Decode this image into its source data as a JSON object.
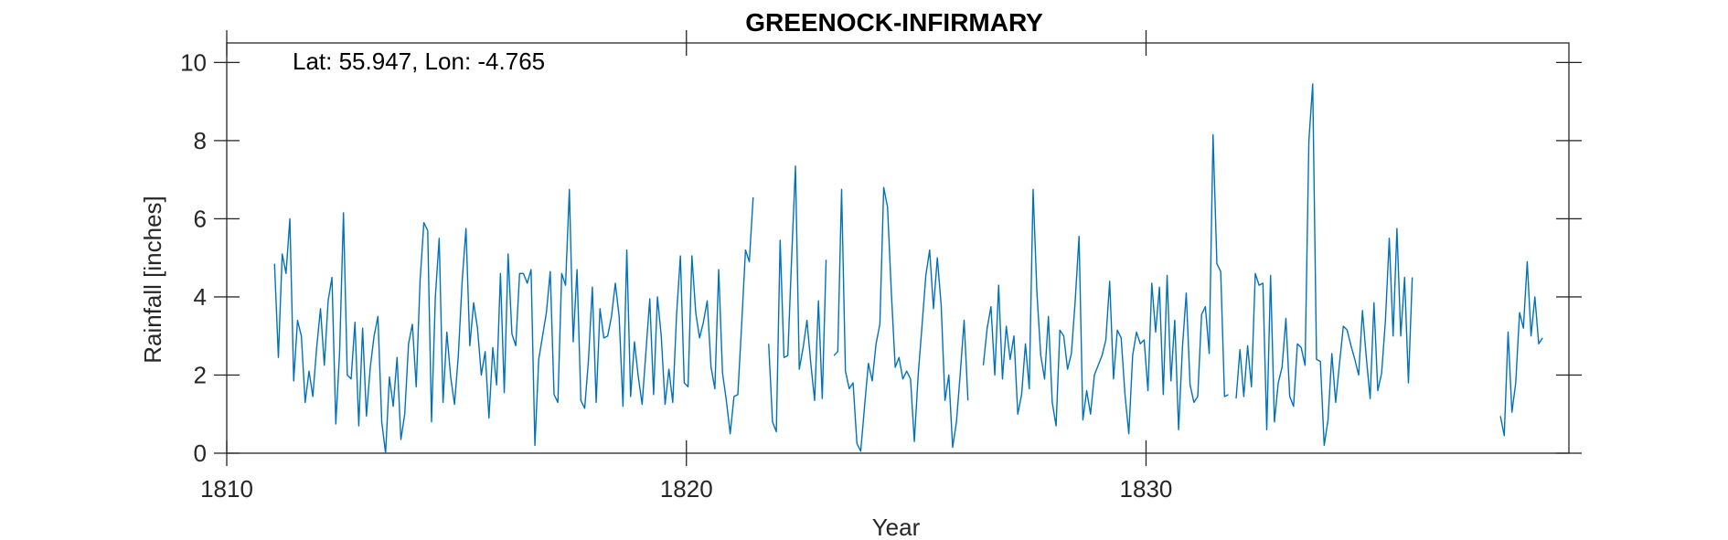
{
  "chart_data": {
    "type": "line",
    "title": "GREENOCK-INFIRMARY",
    "annotation": "Lat: 55.947, Lon: -4.765",
    "xlabel": "Year",
    "ylabel": "Rainfall [inches]",
    "xlim": [
      1810,
      1839.2
    ],
    "ylim": [
      0,
      10.5
    ],
    "xticks": [
      1810,
      1820,
      1830
    ],
    "yticks": [
      0,
      2,
      4,
      6,
      8,
      10
    ],
    "grid": false,
    "line_color": "#0072BD",
    "series": [
      {
        "segments": [
          {
            "start": 1811.04,
            "step": 0.0833,
            "values": [
              4.85,
              2.45,
              5.1,
              4.6,
              6.0,
              1.85,
              3.4,
              3.0,
              1.3,
              2.1,
              1.45,
              2.7,
              3.7,
              2.25,
              3.9,
              4.5,
              0.75,
              2.6,
              6.15,
              2.0,
              1.9,
              3.35,
              0.7,
              3.2,
              0.95,
              2.2,
              3.0,
              3.5,
              0.8,
              0.0,
              1.95,
              1.2,
              2.45,
              0.35,
              1.0,
              2.8,
              3.3,
              1.7,
              4.4,
              5.9,
              5.7,
              0.8,
              4.0,
              5.5,
              1.3,
              3.1,
              1.95,
              1.25,
              2.5,
              4.4,
              5.75,
              2.75,
              3.85,
              3.2,
              2.0,
              2.6,
              0.9,
              2.7,
              1.75,
              4.6,
              1.55,
              5.1,
              3.05,
              2.75,
              4.6,
              4.6,
              4.35,
              4.7,
              0.2,
              2.4,
              3.0,
              3.6,
              4.65,
              1.5,
              1.3,
              4.6,
              4.3,
              6.75,
              2.85,
              4.7,
              1.35,
              1.15,
              2.4,
              4.25,
              1.3,
              3.7,
              2.95,
              3.0,
              3.5,
              4.35,
              3.5,
              1.2,
              5.2,
              1.45,
              2.85,
              1.95,
              1.25,
              2.6,
              3.95,
              1.5,
              4.0,
              3.0,
              1.25,
              2.15,
              1.3,
              3.55,
              5.05,
              1.8,
              1.7,
              5.05,
              3.6,
              2.95,
              3.35,
              3.9,
              2.2,
              1.65,
              4.7,
              2.05,
              1.35,
              0.5,
              1.45,
              1.5,
              3.3,
              5.2,
              4.9,
              6.55
            ]
          },
          {
            "start": 1821.79,
            "step": 0.0833,
            "values": [
              2.8,
              0.8,
              0.55,
              5.45,
              2.45,
              2.5,
              5.0,
              7.35,
              2.15,
              2.7,
              3.4,
              2.3,
              1.35,
              3.9,
              1.4,
              4.95
            ]
          },
          {
            "start": 1823.21,
            "step": 0.0833,
            "values": [
              2.5,
              2.6,
              6.75,
              2.1,
              1.65,
              1.8,
              0.25,
              0.05,
              1.2,
              2.3,
              1.85,
              2.8,
              3.3,
              6.8,
              6.3,
              4.1,
              2.2,
              2.45,
              1.9,
              2.1,
              1.9,
              0.3,
              2.0,
              3.25,
              4.55,
              5.2,
              3.7,
              5.0,
              3.8,
              1.35,
              2.0,
              0.15,
              0.8,
              2.05,
              3.4,
              1.35
            ]
          },
          {
            "start": 1826.46,
            "step": 0.0833,
            "values": [
              2.25,
              3.2,
              3.75,
              2.0,
              4.3,
              1.9,
              3.25,
              2.4,
              3.0,
              1.0,
              1.5,
              2.8,
              1.65,
              6.75,
              4.1,
              2.5,
              1.9,
              3.5,
              1.3,
              0.7,
              3.15,
              3.0,
              2.15,
              2.55,
              3.9,
              5.55,
              0.85,
              1.6,
              1.0,
              2.0,
              2.25,
              2.5,
              2.9,
              4.4,
              1.9,
              3.15,
              2.95,
              1.5,
              0.5,
              2.5,
              3.1,
              2.8,
              2.9,
              1.6,
              4.35,
              3.1,
              4.25,
              1.5,
              4.55,
              1.85,
              3.4,
              0.6,
              2.7,
              4.1,
              1.75,
              1.3,
              1.45,
              3.55,
              3.75,
              2.55,
              8.15,
              4.85,
              4.65,
              1.45,
              1.5
            ]
          },
          {
            "start": 1831.96,
            "step": 0.0833,
            "values": [
              1.4,
              2.65,
              1.45,
              2.75,
              1.7,
              4.6,
              4.3,
              4.35,
              0.6,
              4.55,
              0.8,
              1.8,
              2.2,
              3.45,
              1.45,
              1.2,
              2.8,
              2.7,
              2.25,
              8.0,
              9.45,
              2.4,
              2.35,
              0.2,
              0.85,
              2.55,
              1.3,
              2.3,
              3.25,
              3.15,
              2.75,
              2.4,
              2.0,
              3.65,
              2.45,
              1.4,
              3.85,
              1.6,
              2.05,
              3.4,
              5.5,
              3.0,
              5.75,
              3.0,
              4.5,
              1.8,
              4.5
            ]
          },
          {
            "start": 1837.71,
            "step": 0.0833,
            "values": [
              0.95,
              0.45,
              3.1,
              1.05,
              1.8,
              3.6,
              3.2,
              4.9,
              3.0,
              4.0,
              2.8,
              2.95
            ]
          }
        ]
      }
    ]
  }
}
